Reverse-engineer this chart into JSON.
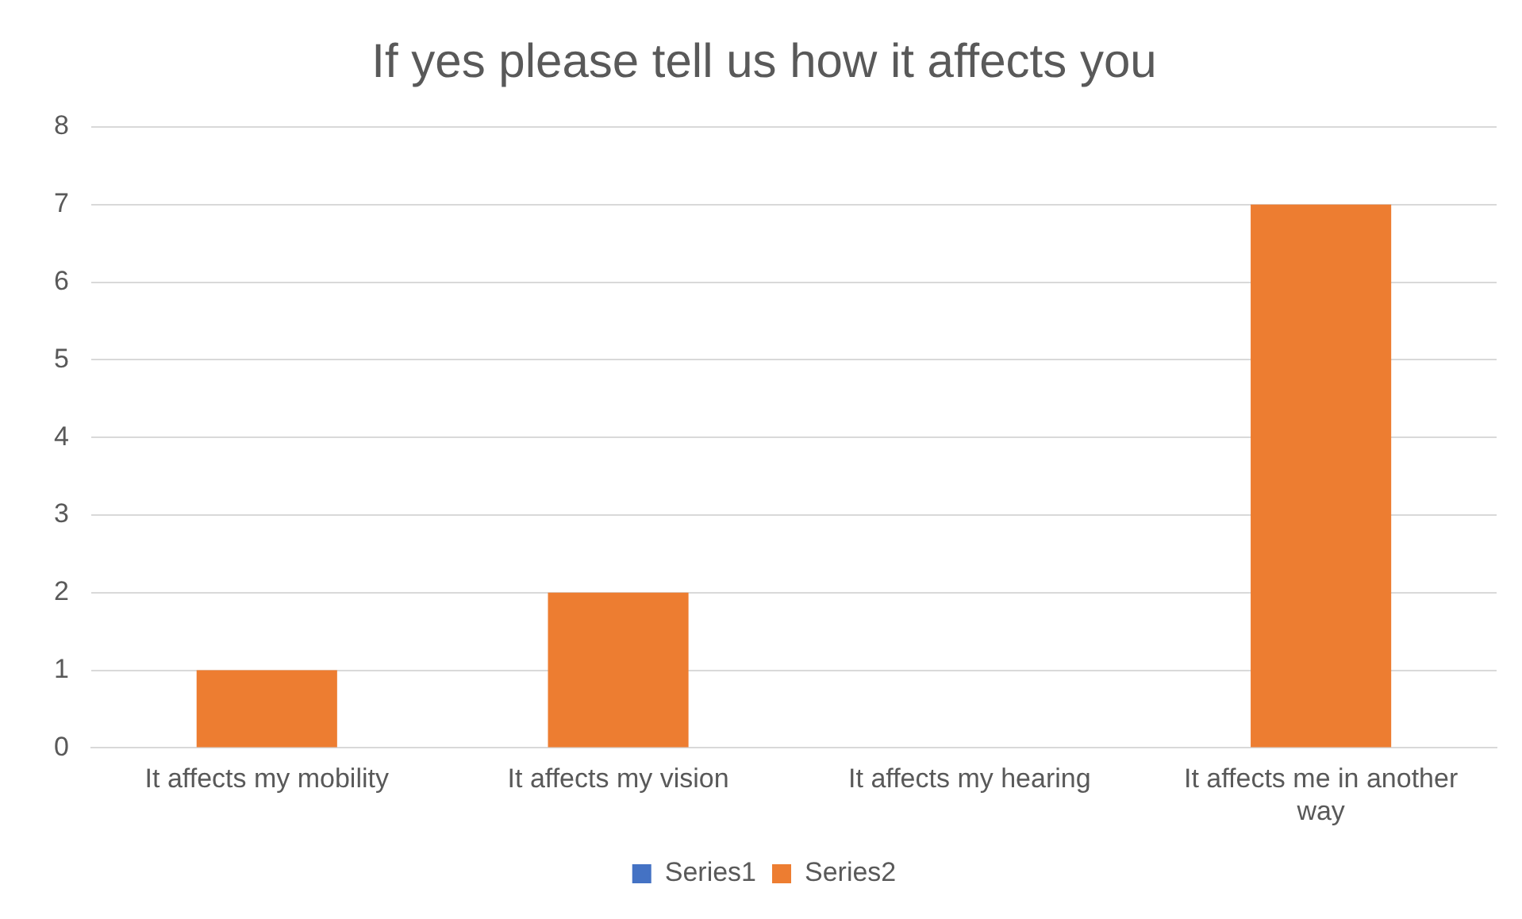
{
  "chart_data": {
    "type": "bar",
    "title": "If yes please tell us how it affects you",
    "categories": [
      "It affects my mobility",
      "It affects my vision",
      "It affects my hearing",
      "It affects me in another way"
    ],
    "series": [
      {
        "name": "Series1",
        "color": "#4472c4",
        "values": [
          null,
          null,
          null,
          null
        ]
      },
      {
        "name": "Series2",
        "color": "#ed7d31",
        "values": [
          1,
          2,
          0,
          7
        ]
      }
    ],
    "ylim": [
      0,
      8
    ],
    "yticks": [
      0,
      1,
      2,
      3,
      4,
      5,
      6,
      7,
      8
    ],
    "grid": "y",
    "legend": "bottom"
  }
}
